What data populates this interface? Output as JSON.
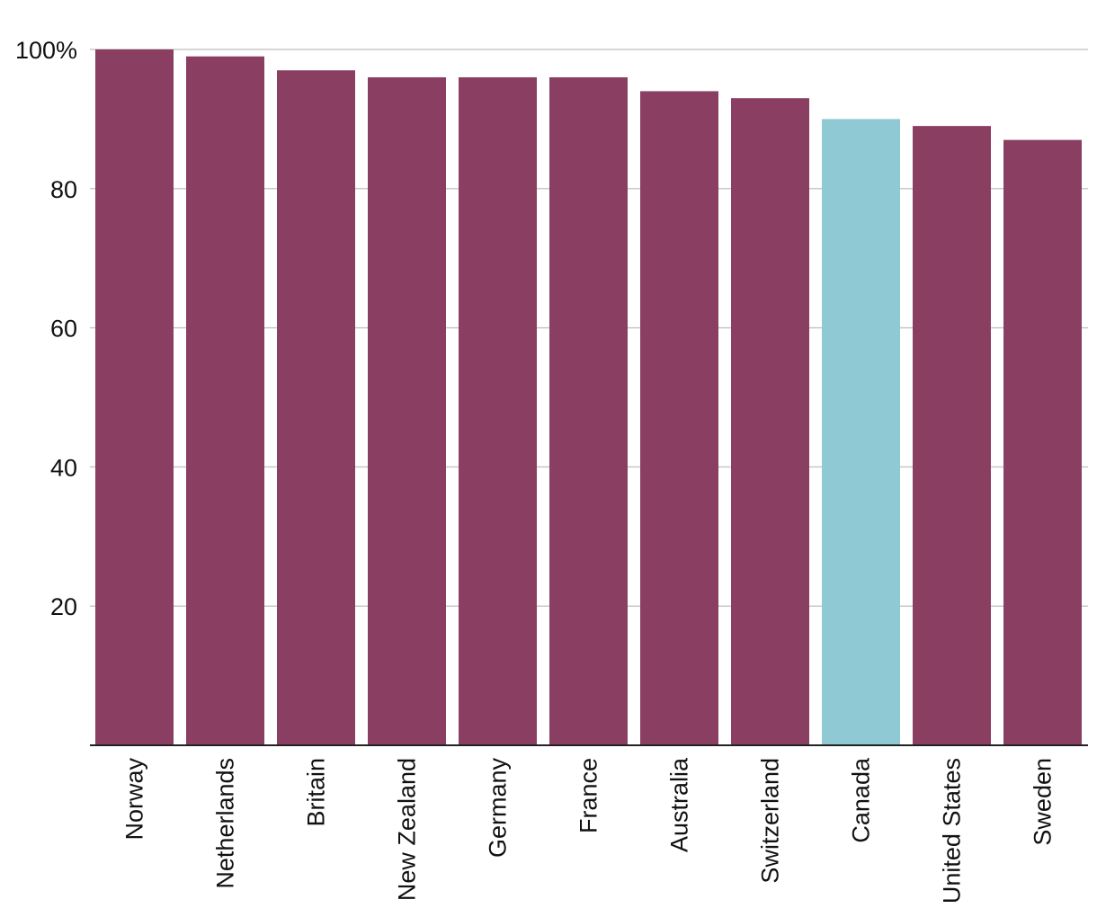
{
  "chart_data": {
    "type": "bar",
    "categories": [
      "Norway",
      "Netherlands",
      "Britain",
      "New Zealand",
      "Germany",
      "France",
      "Australia",
      "Switzerland",
      "Canada",
      "United States",
      "Sweden"
    ],
    "values": [
      100,
      99,
      97,
      96,
      96,
      96,
      94,
      93,
      90,
      89,
      87
    ],
    "highlight_category": "Canada",
    "ylim": [
      0,
      100
    ],
    "yticks": [
      20,
      40,
      60,
      80,
      100
    ],
    "ytick_labels": [
      "20",
      "40",
      "60",
      "80",
      "100%"
    ],
    "grid": true,
    "colors": {
      "bar": "#8a3f62",
      "highlight": "#8fc9d4"
    }
  }
}
